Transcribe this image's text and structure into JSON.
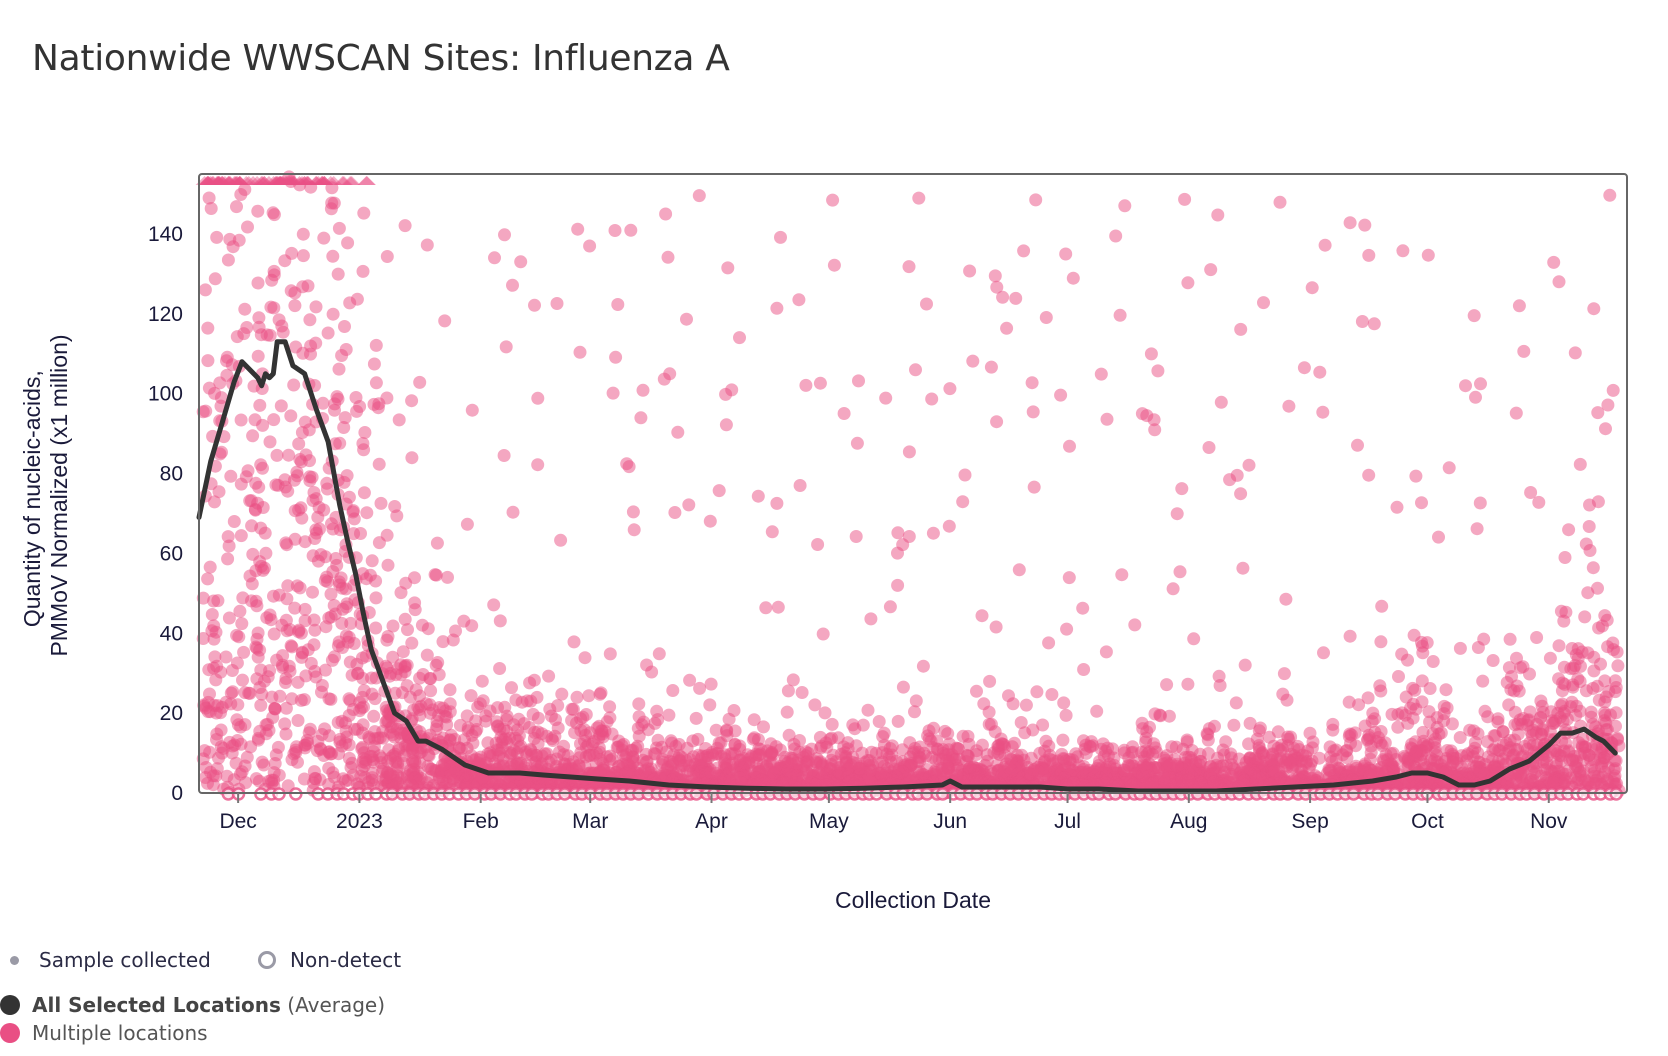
{
  "title": "Nationwide WWSCAN Sites: Influenza A",
  "colors": {
    "points": "#e94f84",
    "average_line": "#333333",
    "frame": "#666666",
    "sample_collected": "#9a9aa6",
    "non_detect": "#9a9aa6"
  },
  "legend": {
    "sample_collected": "Sample collected",
    "non_detect": "Non-detect",
    "average_bold": "All Selected Locations",
    "average_suffix": " (Average)",
    "multiple_locations": "Multiple locations"
  },
  "chart_data": {
    "type": "scatter",
    "title": "Nationwide WWSCAN Sites: Influenza A",
    "xlabel": "Collection Date",
    "ylabel": [
      "Quantity of nucleic-acids,",
      "PMMoV Normalized (x1 million)"
    ],
    "x_unit": "days since 2022-12-01",
    "xlim": [
      -10,
      355
    ],
    "ylim": [
      0,
      155
    ],
    "grid": false,
    "legend_position": "bottom-left",
    "x_ticks": [
      {
        "label": "Dec",
        "x": 0
      },
      {
        "label": "2023",
        "x": 31
      },
      {
        "label": "Feb",
        "x": 62
      },
      {
        "label": "Mar",
        "x": 90
      },
      {
        "label": "Apr",
        "x": 121
      },
      {
        "label": "May",
        "x": 151
      },
      {
        "label": "Jun",
        "x": 182
      },
      {
        "label": "Jul",
        "x": 212
      },
      {
        "label": "Aug",
        "x": 243
      },
      {
        "label": "Sep",
        "x": 274
      },
      {
        "label": "Oct",
        "x": 304
      },
      {
        "label": "Nov",
        "x": 335
      }
    ],
    "y_ticks": [
      0,
      20,
      40,
      60,
      80,
      100,
      120,
      140
    ],
    "series": [
      {
        "name": "All Selected Locations (Average)",
        "kind": "line",
        "x": [
          -10,
          -7,
          -4,
          -1,
          1,
          3,
          5,
          6,
          7,
          8,
          9,
          10,
          12,
          14,
          17,
          20,
          23,
          26,
          28,
          30,
          32,
          34,
          37,
          40,
          43,
          46,
          48,
          50,
          52,
          55,
          58,
          61,
          64,
          67,
          72,
          78,
          85,
          92,
          100,
          110,
          120,
          130,
          140,
          150,
          160,
          170,
          180,
          182,
          185,
          195,
          205,
          212,
          220,
          230,
          240,
          250,
          260,
          270,
          280,
          290,
          296,
          300,
          304,
          308,
          312,
          316,
          320,
          325,
          330,
          335,
          338,
          341,
          344,
          347,
          349,
          352
        ],
        "y": [
          69,
          83,
          93,
          103,
          108,
          106,
          104,
          102,
          105,
          104,
          105,
          113,
          113,
          107,
          105,
          96,
          88,
          72,
          63,
          55,
          45,
          36,
          28,
          20,
          18,
          13,
          13,
          12,
          11,
          9,
          7,
          6,
          5,
          5,
          5,
          4.5,
          4,
          3.5,
          3,
          2,
          1.5,
          1.2,
          1,
          1,
          1.2,
          1.5,
          2,
          3,
          1.5,
          1.5,
          1.5,
          1,
          1,
          0.5,
          0.5,
          0.5,
          1,
          1.5,
          2,
          3,
          4,
          5,
          5,
          4,
          2,
          2,
          3,
          6,
          8,
          12,
          15,
          15,
          16,
          14,
          13,
          10
        ]
      },
      {
        "name": "Multiple locations",
        "kind": "points",
        "point_count": 5200,
        "off_scale_marker": "triangle-up at ylim max",
        "non_detect_marker": "open circle at 0"
      }
    ]
  }
}
